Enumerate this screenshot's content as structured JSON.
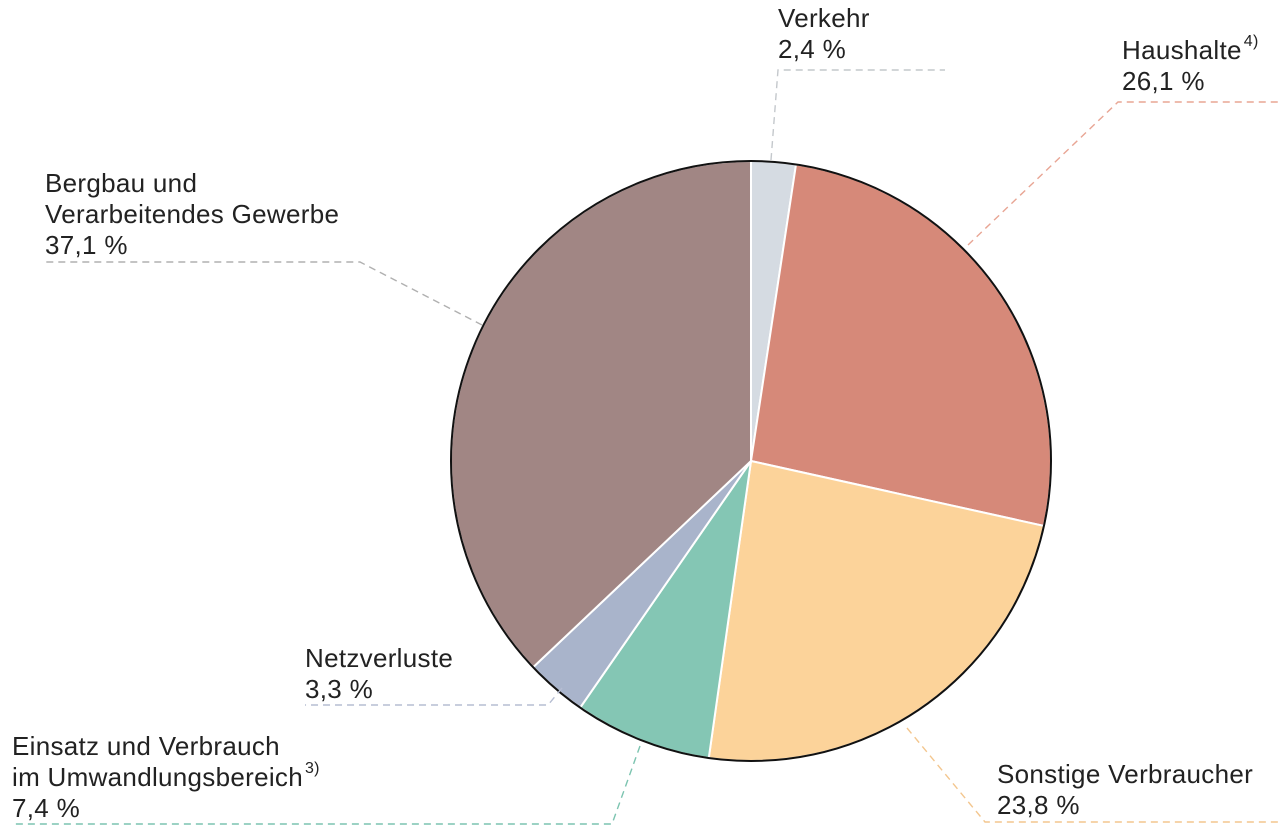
{
  "chart_data": {
    "type": "pie",
    "categories": [
      "Verkehr",
      "Haushalte",
      "Sonstige Verbraucher",
      "Einsatz und Verbrauch im Umwandlungsbereich",
      "Netzverluste",
      "Bergbau und Verarbeitendes Gewerbe"
    ],
    "footnotes": {
      "1": "4)",
      "3": "3)"
    },
    "values": [
      2.4,
      26.1,
      23.8,
      7.4,
      3.3,
      37.1
    ],
    "value_labels": [
      "2,4 %",
      "26,1 %",
      "23,8 %",
      "7,4 %",
      "3,3 %",
      "37,1 %"
    ],
    "colors": [
      "#d5dbe2",
      "#d68979",
      "#fcd39a",
      "#84c6b4",
      "#a9b4cb",
      "#a18684"
    ]
  }
}
